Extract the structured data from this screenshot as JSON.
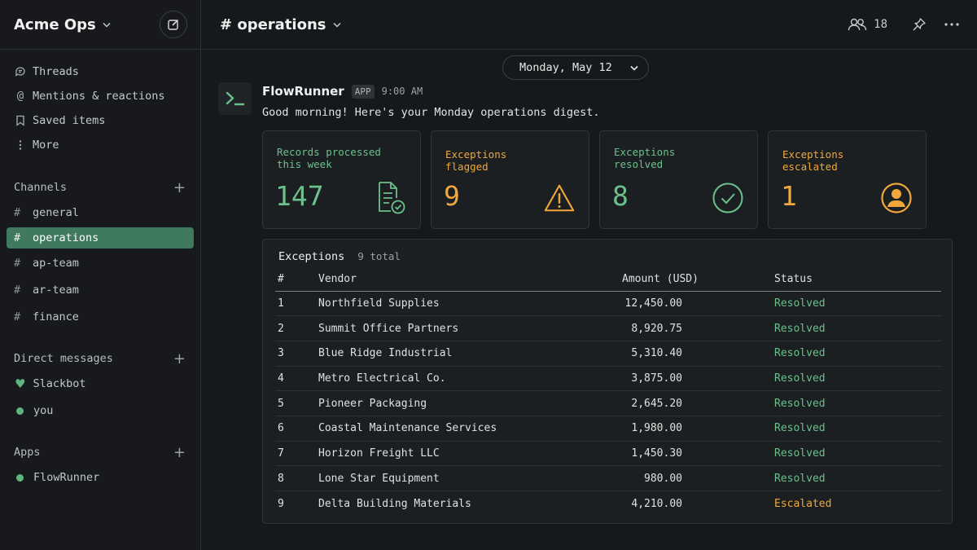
{
  "workspace": {
    "name": "Acme Ops"
  },
  "nav": [
    {
      "label": "Threads",
      "icon": "threads-icon"
    },
    {
      "label": "Mentions & reactions",
      "icon": "at-icon"
    },
    {
      "label": "Saved items",
      "icon": "bookmark-icon"
    },
    {
      "label": "More",
      "icon": "more-vertical-icon"
    }
  ],
  "channels": {
    "header": "Channels",
    "items": [
      {
        "name": "general",
        "active": false
      },
      {
        "name": "operations",
        "active": true
      },
      {
        "name": "ap-team",
        "active": false
      },
      {
        "name": "ar-team",
        "active": false
      },
      {
        "name": "finance",
        "active": false
      }
    ]
  },
  "dms": {
    "header": "Direct messages",
    "items": [
      {
        "name": "Slackbot",
        "icon": "heart-icon"
      },
      {
        "name": "you",
        "icon": "presence-dot"
      }
    ]
  },
  "apps": {
    "header": "Apps",
    "items": [
      {
        "name": "FlowRunner",
        "icon": "presence-dot"
      }
    ]
  },
  "channel_header": {
    "title": "# operations",
    "member_count": "18"
  },
  "date_divider": "Monday, May 12",
  "message": {
    "sender": "FlowRunner",
    "badge": "APP",
    "time": "9:00 AM",
    "text": "Good morning! Here's your Monday operations digest."
  },
  "cards": [
    {
      "label": "Records processed this week",
      "value": "147",
      "color": "#6cc08c",
      "icon": "document-check-icon"
    },
    {
      "label": "Exceptions flagged",
      "value": "9",
      "color": "#f0a83c",
      "icon": "warning-triangle-icon"
    },
    {
      "label": "Exceptions resolved",
      "value": "8",
      "color": "#6cc08c",
      "icon": "check-circle-icon"
    },
    {
      "label": "Exceptions escalated",
      "value": "1",
      "color": "#f0a83c",
      "icon": "user-circle-icon"
    }
  ],
  "exceptions": {
    "title": "Exceptions",
    "count": "9 total",
    "columns": [
      "#",
      "Vendor",
      "Amount (USD)",
      "Status"
    ],
    "rows": [
      {
        "num": "1",
        "vendor": "Northfield Supplies",
        "amount": "12,450.00",
        "status": "Resolved"
      },
      {
        "num": "2",
        "vendor": "Summit Office Partners",
        "amount": "8,920.75",
        "status": "Resolved"
      },
      {
        "num": "3",
        "vendor": "Blue Ridge Industrial",
        "amount": "5,310.40",
        "status": "Resolved"
      },
      {
        "num": "4",
        "vendor": "Metro Electrical Co.",
        "amount": "3,875.00",
        "status": "Resolved"
      },
      {
        "num": "5",
        "vendor": "Pioneer Packaging",
        "amount": "2,645.20",
        "status": "Resolved"
      },
      {
        "num": "6",
        "vendor": "Coastal Maintenance Services",
        "amount": "1,980.00",
        "status": "Resolved"
      },
      {
        "num": "7",
        "vendor": "Horizon Freight LLC",
        "amount": "1,450.30",
        "status": "Resolved"
      },
      {
        "num": "8",
        "vendor": "Lone Star Equipment",
        "amount": "980.00",
        "status": "Resolved"
      },
      {
        "num": "9",
        "vendor": "Delta Building Materials",
        "amount": "4,210.00",
        "status": "Escalated"
      }
    ]
  },
  "colors": {
    "accent_green": "#6cc08c",
    "accent_amber": "#f0a83c",
    "active_channel": "#3f7a5e"
  }
}
